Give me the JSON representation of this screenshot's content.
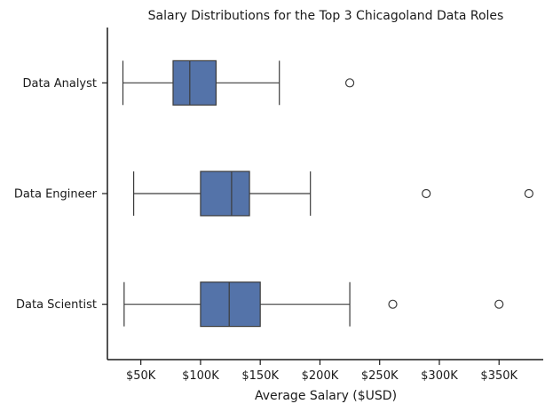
{
  "chart_data": {
    "type": "boxplot",
    "orientation": "horizontal",
    "title": "Salary Distributions for the Top 3 Chicagoland Data Roles",
    "xlabel": "Average Salary ($USD)",
    "ylabel": "",
    "xlim": [
      22000,
      387000
    ],
    "x_ticks": [
      {
        "value": 50000,
        "label": "$50K"
      },
      {
        "value": 100000,
        "label": "$100K"
      },
      {
        "value": 150000,
        "label": "$150K"
      },
      {
        "value": 200000,
        "label": "$200K"
      },
      {
        "value": 250000,
        "label": "$250K"
      },
      {
        "value": 300000,
        "label": "$300K"
      },
      {
        "value": 350000,
        "label": "$350K"
      }
    ],
    "grid": false,
    "box_color": "#5473a9",
    "line_color": "#3b3b3b",
    "categories": [
      "Data Analyst",
      "Data Engineer",
      "Data Scientist"
    ],
    "series": [
      {
        "category": "Data Analyst",
        "whisker_low": 35000,
        "q1": 77000,
        "median": 91000,
        "q3": 113000,
        "whisker_high": 166000,
        "outliers": [
          225000
        ]
      },
      {
        "category": "Data Engineer",
        "whisker_low": 44000,
        "q1": 100000,
        "median": 126000,
        "q3": 141000,
        "whisker_high": 192000,
        "outliers": [
          289000,
          375000
        ]
      },
      {
        "category": "Data Scientist",
        "whisker_low": 36000,
        "q1": 100000,
        "median": 124000,
        "q3": 150000,
        "whisker_high": 225000,
        "outliers": [
          261000,
          350000
        ]
      }
    ]
  }
}
